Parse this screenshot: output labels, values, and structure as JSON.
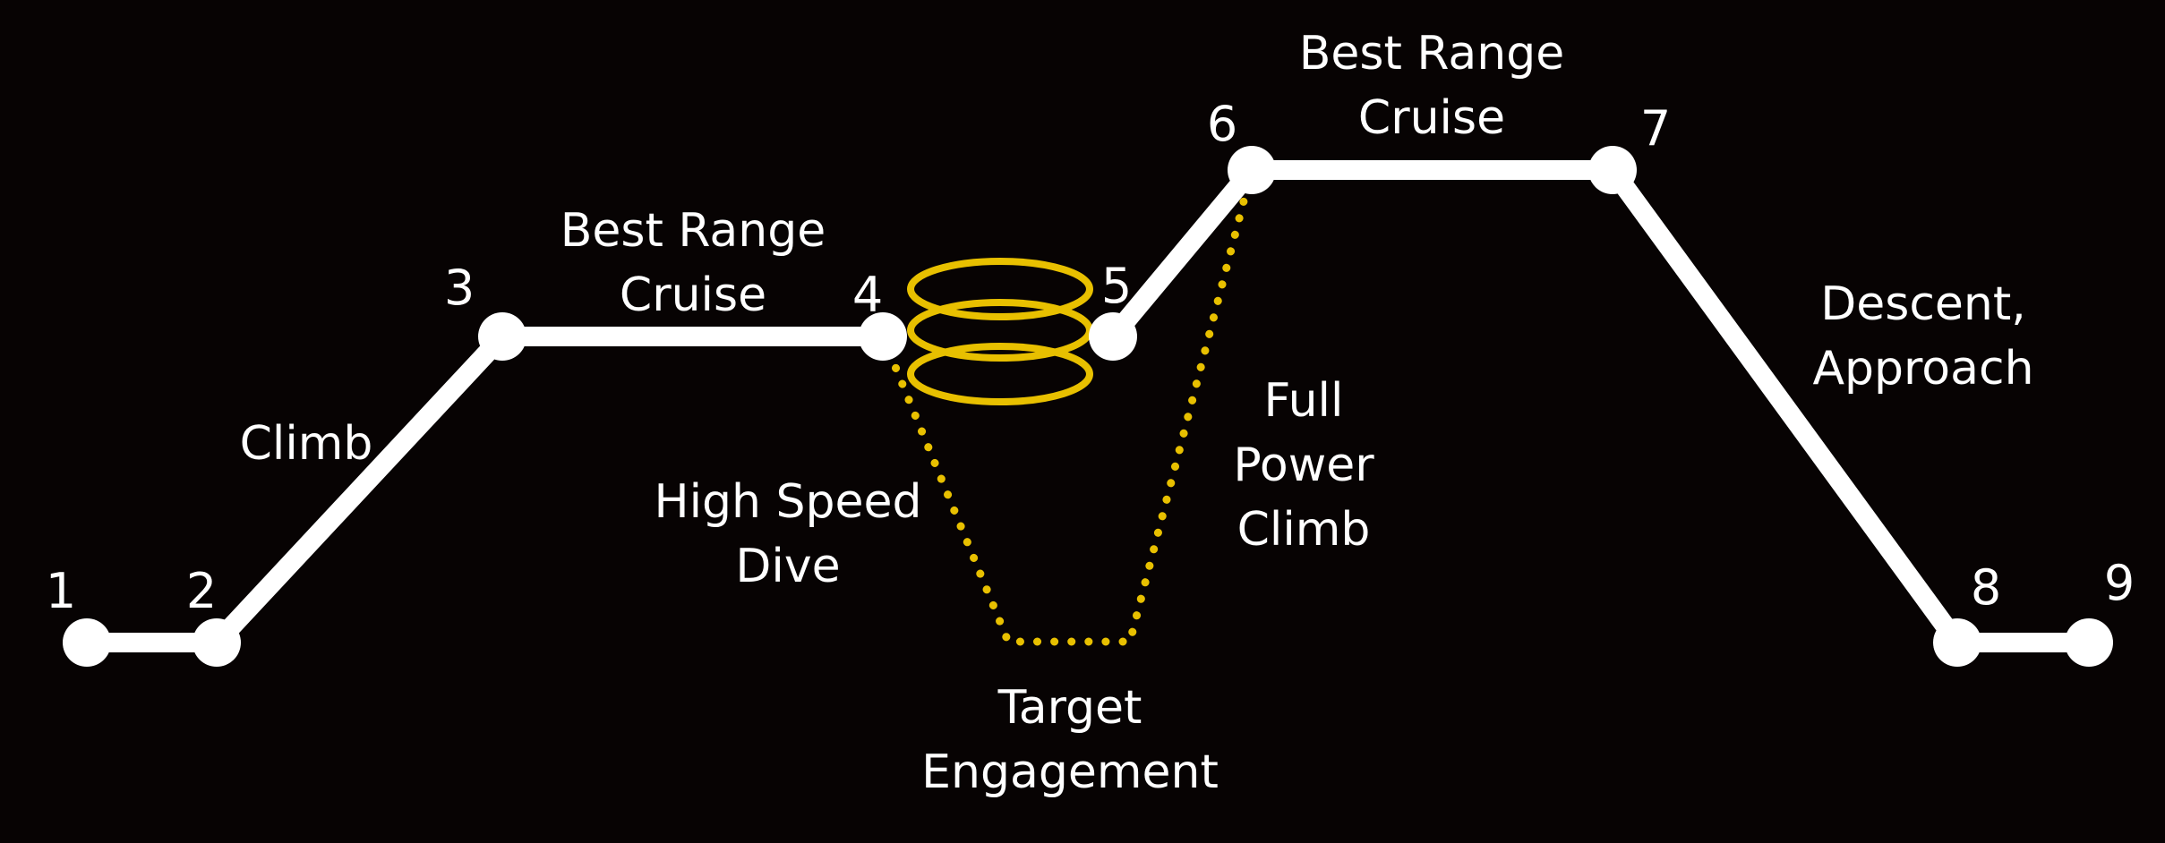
{
  "colors": {
    "background": "#070303",
    "path": "#ffffff",
    "engagement": "#e8c000"
  },
  "waypoints": [
    "1",
    "2",
    "3",
    "4",
    "5",
    "6",
    "7",
    "8",
    "9"
  ],
  "labels": {
    "climb": "Climb",
    "cruise_1": [
      "Best Range",
      "Cruise"
    ],
    "cruise_2": [
      "Best Range",
      "Cruise"
    ],
    "high_speed_dive": [
      "High Speed",
      "Dive"
    ],
    "full_power_climb": [
      "Full",
      "Power",
      "Climb"
    ],
    "target_engagement": [
      "Target",
      "Engagement"
    ],
    "descent_approach": [
      "Descent,",
      "Approach"
    ]
  }
}
